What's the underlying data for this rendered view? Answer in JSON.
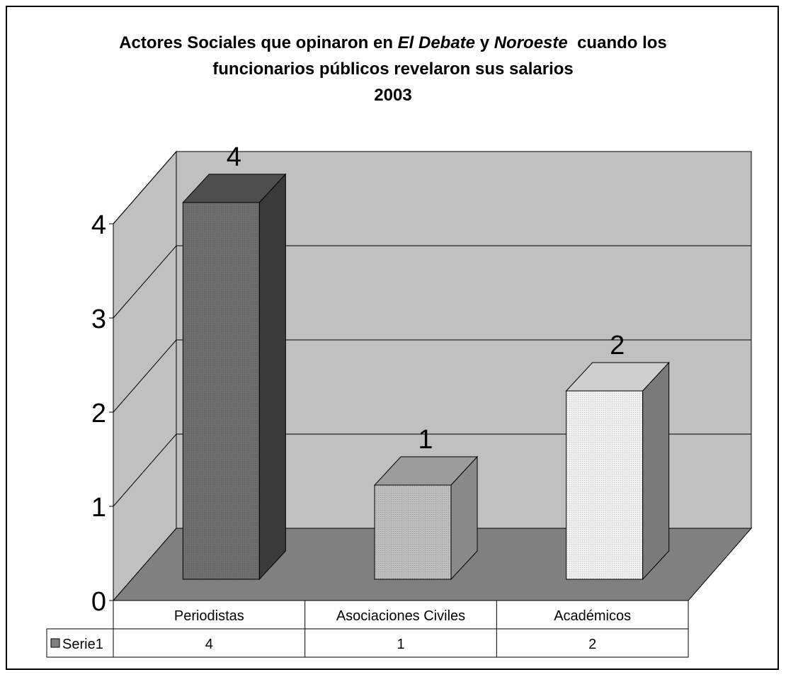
{
  "chart_data": {
    "type": "bar",
    "title_lines": [
      [
        "Actores Sociales que opinaron en ",
        "El Debate",
        " y ",
        "Noroeste",
        "  cuando los"
      ],
      [
        "funcionarios públicos revelaron sus salarios"
      ],
      [
        "2003"
      ]
    ],
    "categories": [
      "Periodistas",
      "Asociaciones Civiles",
      "Académicos"
    ],
    "series": [
      {
        "name": "Serie1",
        "values": [
          4,
          1,
          2
        ]
      }
    ],
    "data_labels": [
      "4",
      "1",
      "2"
    ],
    "ylim": [
      0,
      4
    ],
    "yticks": [
      "0",
      "1",
      "2",
      "3",
      "4"
    ],
    "xlabel": "",
    "ylabel": "",
    "grid": true,
    "legend": "data-table",
    "colors": {
      "back_wall": "#c0c0c0",
      "floor": "#808080",
      "bar_front": [
        "#6e6e6e",
        "#bdbdbd",
        "#f0f0f0"
      ],
      "bar_top": [
        "#4e4e4e",
        "#9c9c9c",
        "#cfcfcf"
      ],
      "bar_side": [
        "#3a3a3a",
        "#8a8a8a",
        "#7a7a7a"
      ],
      "legend_swatch": "#808080"
    }
  }
}
